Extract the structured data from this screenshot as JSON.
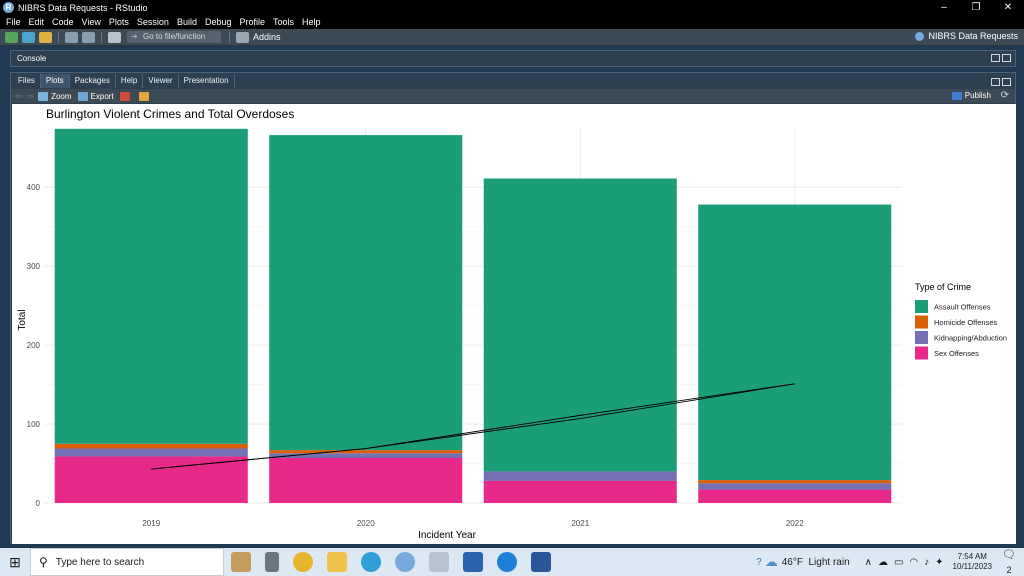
{
  "window": {
    "title": "NIBRS Data Requests - RStudio",
    "controls": [
      "–",
      "❐",
      "✕"
    ]
  },
  "menu": [
    "File",
    "Edit",
    "Code",
    "View",
    "Plots",
    "Session",
    "Build",
    "Debug",
    "Profile",
    "Tools",
    "Help"
  ],
  "toolbar": {
    "goto_placeholder": "Go to file/function",
    "addins_label": "Addins",
    "project_label": "NIBRS Data Requests"
  },
  "console_pane": {
    "label": "Console"
  },
  "plots_pane": {
    "tabs": [
      "Files",
      "Plots",
      "Packages",
      "Help",
      "Viewer",
      "Presentation"
    ],
    "active_tab": "Plots",
    "zoom_label": "Zoom",
    "export_label": "Export",
    "publish_label": "Publish"
  },
  "chart_data": {
    "type": "bar",
    "title": "Burlington Violent Crimes and Total Overdoses",
    "xlabel": "Incident Year",
    "ylabel": "Total",
    "categories": [
      "2019",
      "2020",
      "2021",
      "2022"
    ],
    "ylim": [
      0,
      475
    ],
    "yticks": [
      0,
      100,
      200,
      300,
      400
    ],
    "stacked": true,
    "grid": true,
    "legend": {
      "title": "Type of Crime",
      "position": "right"
    },
    "series": [
      {
        "name": "Sex Offenses",
        "color": "#E7298A",
        "values": [
          59,
          57,
          28,
          17
        ]
      },
      {
        "name": "Kidnapping/Abduction",
        "color": "#7570B3",
        "values": [
          10,
          6,
          12,
          8
        ]
      },
      {
        "name": "Homicide Offenses",
        "color": "#D95F02",
        "values": [
          6,
          4,
          0,
          4
        ]
      },
      {
        "name": "Assault Offenses",
        "color": "#1B9E77",
        "values": [
          399,
          399,
          371,
          349
        ]
      }
    ],
    "legend_order": [
      "Assault Offenses",
      "Homicide Offenses",
      "Kidnapping/Abduction",
      "Sex Offenses"
    ],
    "overdose_lines": [
      {
        "color": "#000000",
        "values": [
          43,
          69,
          107,
          151
        ]
      },
      {
        "color": "#000000",
        "values": [
          43,
          69,
          111,
          151
        ]
      }
    ]
  },
  "taskbar": {
    "search_placeholder": "Type here to search",
    "weather_temp": "46°F",
    "weather_desc": "Light rain",
    "time": "7:54 AM",
    "date": "10/11/2023",
    "notification_count": "2"
  }
}
